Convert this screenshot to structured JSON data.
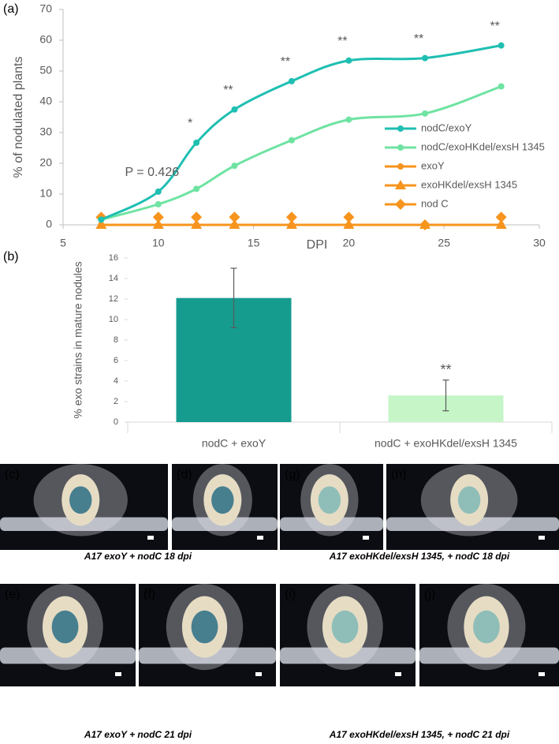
{
  "chart_data": [
    {
      "type": "line",
      "panel_label": "(a)",
      "xlabel": "DPI",
      "ylabel": "% of nodulated plants",
      "x": [
        7,
        10,
        12,
        14,
        17,
        20,
        24,
        28
      ],
      "xlim": [
        5,
        30
      ],
      "xticks": [
        5,
        10,
        15,
        20,
        25,
        30
      ],
      "ylim": [
        0,
        70
      ],
      "yticks": [
        0,
        10,
        20,
        30,
        40,
        50,
        60,
        70
      ],
      "series": [
        {
          "name": "nodC/exoY",
          "color": "#1fbfb2",
          "marker": "circle",
          "line": true,
          "values": [
            1.7,
            10.8,
            26.7,
            37.5,
            46.7,
            53.4,
            54.2,
            58.3
          ],
          "annotations": [
            null,
            "P = 0.426",
            "*",
            "**",
            "**",
            "**",
            "**",
            "**"
          ]
        },
        {
          "name": "nodC/exoHKdel/exsH 1345",
          "color": "#6fe3a2",
          "marker": "circle",
          "line": true,
          "values": [
            1.7,
            6.7,
            11.7,
            19.2,
            27.5,
            34.2,
            36.2,
            45.0
          ]
        },
        {
          "name": "exoY",
          "color": "#f7941d",
          "marker": "circle",
          "line": true,
          "values": [
            0,
            0,
            0,
            0,
            0,
            0,
            0,
            0
          ]
        },
        {
          "name": "exoHKdel/exsH 1345",
          "color": "#f7941d",
          "marker": "triangle",
          "line": true,
          "values": [
            0,
            0,
            0,
            0,
            0,
            0,
            0,
            0
          ]
        },
        {
          "name": "nod C",
          "color": "#f7941d",
          "marker": "diamond",
          "line": false,
          "values": [
            2.5,
            2.5,
            2.5,
            2.5,
            2.5,
            2.5,
            0,
            2.5
          ]
        }
      ]
    },
    {
      "type": "bar",
      "panel_label": "(b)",
      "ylabel": "% exo strains in mature nodules",
      "categories": [
        "nodC + exoY",
        "nodC + exoHKdel/exsH 1345"
      ],
      "values": [
        12.1,
        2.6
      ],
      "errors": [
        2.9,
        1.5
      ],
      "colors": [
        "#169c8f",
        "#c6f5c8"
      ],
      "annotations": [
        null,
        "**"
      ],
      "ylim": [
        0,
        16
      ],
      "yticks": [
        0,
        2,
        4,
        6,
        8,
        10,
        12,
        14,
        16
      ]
    }
  ],
  "photos": {
    "panels": [
      {
        "label": "(c)"
      },
      {
        "label": "(d)"
      },
      {
        "label": "(g)"
      },
      {
        "label": "(h)"
      },
      {
        "label": "(e)"
      },
      {
        "label": "(f)"
      },
      {
        "label": "(i)"
      },
      {
        "label": "(j)"
      }
    ],
    "captions": [
      "A17 exoY + nodC 18 dpi",
      "A17 exoHKdel/exsH 1345,  + nodC 18 dpi",
      "A17 exoY + nodC 21 dpi",
      "A17 exoHKdel/exsH 1345,  + nodC 21 dpi"
    ]
  }
}
